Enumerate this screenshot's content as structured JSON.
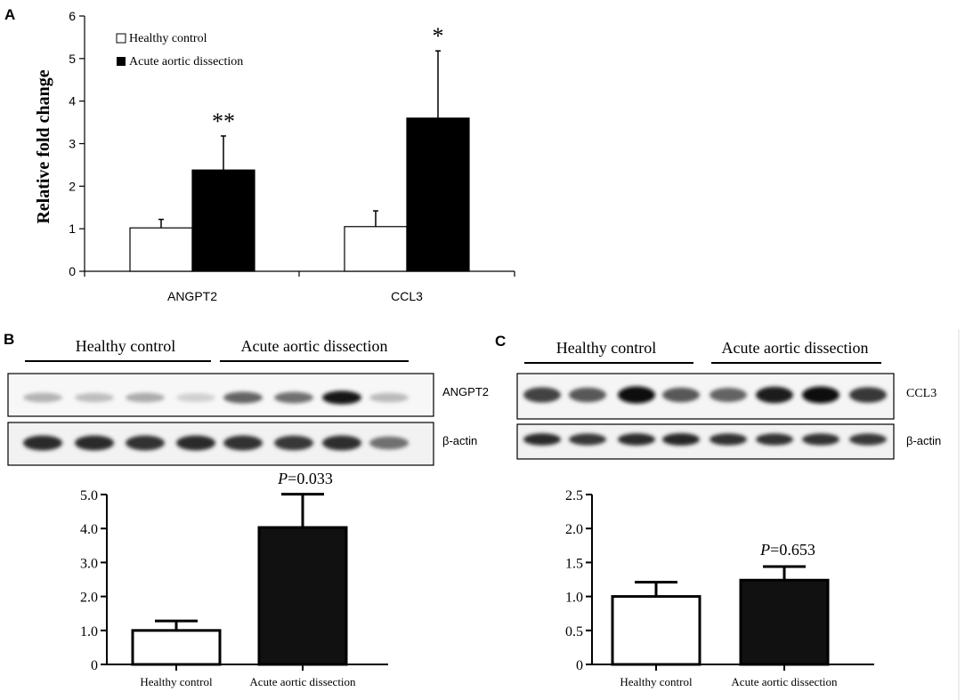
{
  "panels": {
    "a": "A",
    "b": "B",
    "c": "C"
  },
  "chart_data": [
    {
      "type": "bar",
      "panel": "A",
      "ylabel": "Relative fold change",
      "ylim": [
        0,
        6
      ],
      "yticks": [
        "0",
        "1",
        "2",
        "3",
        "4",
        "5",
        "6"
      ],
      "categories": [
        "ANGPT2",
        "CCL3"
      ],
      "series": [
        {
          "name": "Healthy control",
          "color": "#ffffff",
          "values": [
            1.02,
            1.05
          ],
          "errors": [
            0.2,
            0.37
          ]
        },
        {
          "name": "Acute aortic dissection",
          "color": "#000000",
          "values": [
            2.38,
            3.6
          ],
          "errors": [
            0.8,
            1.58
          ]
        }
      ],
      "annotations": [
        "**",
        "*"
      ],
      "legend": "top-left"
    },
    {
      "type": "bar",
      "panel": "B",
      "ylim": [
        0,
        5
      ],
      "yticks": [
        "0",
        "1.0",
        "2.0",
        "3.0",
        "4.0",
        "5.0"
      ],
      "categories": [
        "Healthy control",
        "Acute aortic dissection"
      ],
      "values": [
        1.0,
        4.03
      ],
      "errors": [
        0.28,
        0.98
      ],
      "colors": [
        "#ffffff",
        "#111111"
      ],
      "p_italic": "P",
      "p_value": "=0.033"
    },
    {
      "type": "bar",
      "panel": "C",
      "ylim": [
        0,
        2.5
      ],
      "yticks": [
        "0",
        "0.5",
        "1.0",
        "1.5",
        "2.0",
        "2.5"
      ],
      "categories": [
        "Healthy control",
        "Acute aortic dissection"
      ],
      "values": [
        1.0,
        1.24
      ],
      "errors": [
        0.21,
        0.2
      ],
      "colors": [
        "#ffffff",
        "#111111"
      ],
      "p_italic": "P",
      "p_value": "=0.653"
    }
  ],
  "blots": {
    "b": {
      "group_labels": [
        "Healthy control",
        "Acute aortic dissection"
      ],
      "row_labels": [
        "ANGPT2",
        "β-actin"
      ],
      "target_intensity": [
        0.25,
        0.2,
        0.28,
        0.12,
        0.6,
        0.55,
        0.95,
        0.22
      ],
      "actin_intensity": [
        0.85,
        0.85,
        0.82,
        0.85,
        0.82,
        0.8,
        0.84,
        0.55
      ]
    },
    "c": {
      "group_labels": [
        "Healthy control",
        "Acute aortic dissection"
      ],
      "row_labels": [
        "CCL3",
        "β-actin"
      ],
      "target_intensity": [
        0.75,
        0.65,
        1.0,
        0.65,
        0.6,
        0.92,
        0.98,
        0.8
      ],
      "actin_intensity": [
        0.85,
        0.8,
        0.85,
        0.88,
        0.82,
        0.82,
        0.82,
        0.8
      ]
    }
  }
}
